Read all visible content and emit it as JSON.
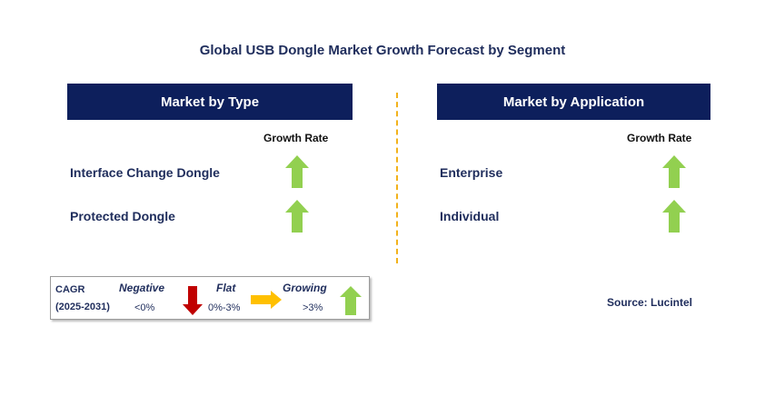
{
  "title": "Global USB Dongle Market Growth Forecast by Segment",
  "left_panel": {
    "header": "Market by Type",
    "rate_label": "Growth Rate",
    "segments": [
      {
        "label": "Interface Change Dongle",
        "trend": "growing"
      },
      {
        "label": "Protected Dongle",
        "trend": "growing"
      }
    ]
  },
  "right_panel": {
    "header": "Market by Application",
    "rate_label": "Growth Rate",
    "segments": [
      {
        "label": "Enterprise",
        "trend": "growing"
      },
      {
        "label": "Individual",
        "trend": "growing"
      }
    ]
  },
  "legend": {
    "cagr_label": "CAGR",
    "period": "(2025-2031)",
    "negative": {
      "label": "Negative",
      "range": "<0%",
      "icon": "down-arrow-icon",
      "color": "#c00000"
    },
    "flat": {
      "label": "Flat",
      "range": "0%-3%",
      "icon": "right-arrow-icon",
      "color": "#ffc000"
    },
    "growing": {
      "label": "Growing",
      "range": ">3%",
      "icon": "up-arrow-icon",
      "color": "#92d050"
    }
  },
  "source": "Source: Lucintel",
  "colors": {
    "header_bg": "#0d1f5c",
    "up_arrow": "#92d050",
    "divider": "#f2b21b"
  }
}
